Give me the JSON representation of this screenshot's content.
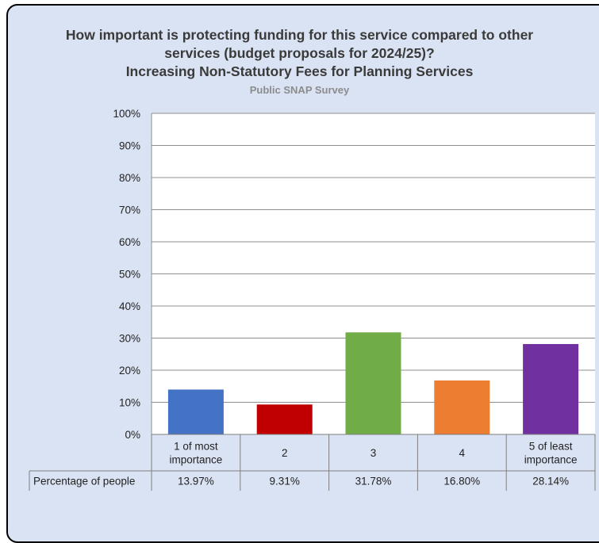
{
  "chart_data": {
    "type": "bar",
    "title_lines": [
      "How important is protecting funding for this service compared to other",
      "services (budget proposals for 2024/25)?",
      "Increasing Non-Statutory Fees for Planning Services"
    ],
    "subtitle": "Public SNAP Survey",
    "categories": [
      "1 of most importance",
      "2",
      "3",
      "4",
      "5 of least importance"
    ],
    "category_label_lines": [
      [
        "1 of most",
        "importance"
      ],
      [
        "2"
      ],
      [
        "3"
      ],
      [
        "4"
      ],
      [
        "5 of least",
        "importance"
      ]
    ],
    "values": [
      13.97,
      9.31,
      31.78,
      16.8,
      28.14
    ],
    "table_row_label": "Percentage of people",
    "table_values": [
      "13.97%",
      "9.31%",
      "31.78%",
      "16.80%",
      "28.14%"
    ],
    "colors": [
      "#4472c4",
      "#c00000",
      "#70ad47",
      "#ed7d31",
      "#7030a0"
    ],
    "ylim": [
      0,
      100
    ],
    "yticks": [
      "0%",
      "10%",
      "20%",
      "30%",
      "40%",
      "50%",
      "60%",
      "70%",
      "80%",
      "90%",
      "100%"
    ],
    "grid": true,
    "legend": "none"
  }
}
